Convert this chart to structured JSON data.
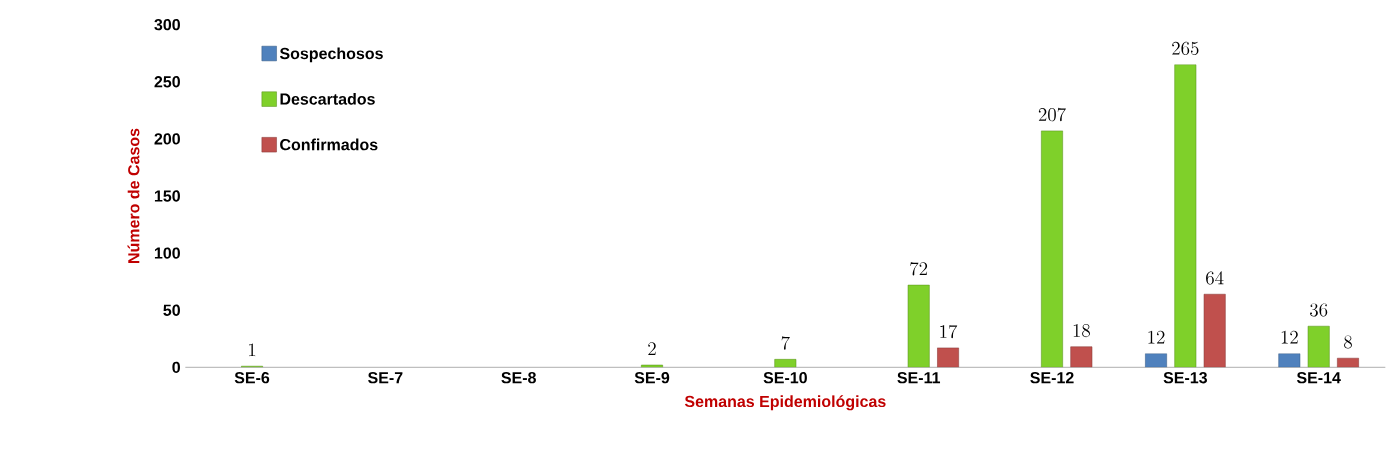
{
  "chart_data": {
    "type": "bar",
    "xlabel": "Semanas Epidemiológicas",
    "ylabel": "Número de Casos",
    "categories": [
      "SE-6",
      "SE-7",
      "SE-8",
      "SE-9",
      "SE-10",
      "SE-11",
      "SE-12",
      "SE-13",
      "SE-14"
    ],
    "series": [
      {
        "name": "Sospechosos",
        "color": "#4f81bd",
        "values": [
          null,
          null,
          null,
          null,
          null,
          null,
          null,
          12,
          12
        ]
      },
      {
        "name": "Descartados",
        "color": "#7fd02a",
        "values": [
          1,
          null,
          null,
          2,
          7,
          72,
          207,
          265,
          36
        ]
      },
      {
        "name": "Confirmados",
        "color": "#c0504d",
        "values": [
          null,
          null,
          null,
          null,
          null,
          17,
          18,
          64,
          8
        ]
      }
    ],
    "ylim": [
      0,
      300
    ],
    "yticks": [
      0,
      50,
      100,
      150,
      200,
      250,
      300
    ],
    "data_labels": true,
    "legend": "top left"
  }
}
